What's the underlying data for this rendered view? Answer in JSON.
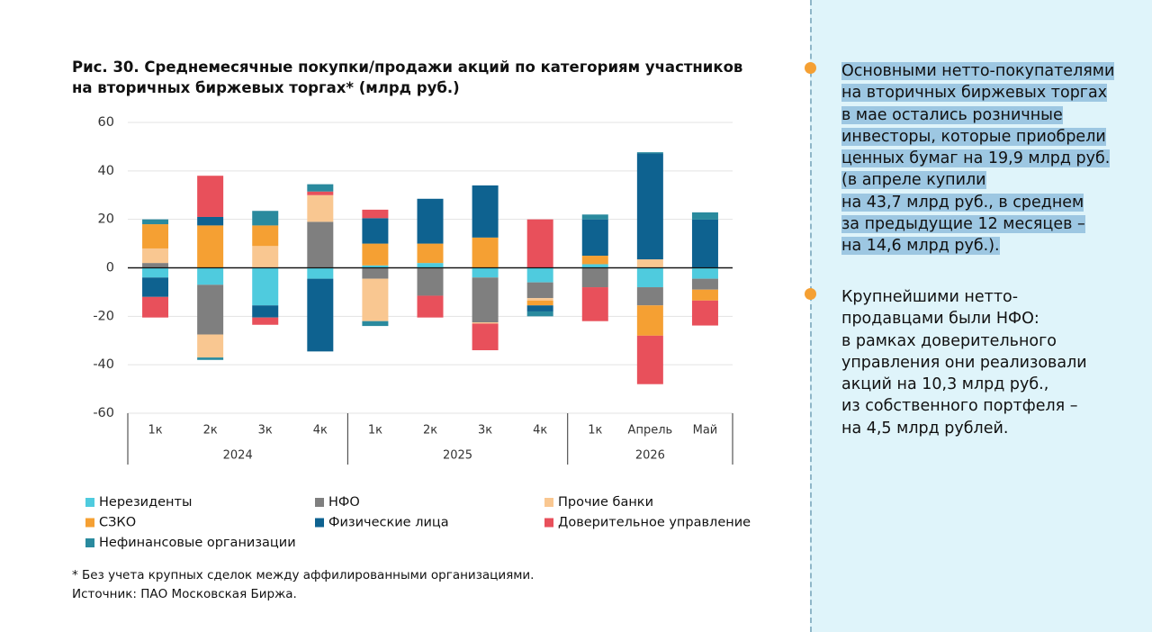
{
  "chart_data": {
    "type": "bar",
    "stacked": true,
    "title": [
      "Рис. 30. Среднемесячные покупки/продажи акций по категориям участников",
      "на вторичных биржевых торгах* (млрд руб.)"
    ],
    "categories": [
      "1к",
      "2к",
      "3к",
      "4к",
      "1к",
      "2к",
      "3к",
      "4к",
      "1к",
      "Апрель",
      "Май"
    ],
    "groups": [
      {
        "label": "2024",
        "count": 4
      },
      {
        "label": "2025",
        "count": 4
      },
      {
        "label": "2026",
        "count": 3
      }
    ],
    "series": [
      {
        "name": "Нерезиденты",
        "color": "#4fcbde",
        "values": [
          -4,
          -7,
          -15.5,
          -4.5,
          1,
          2,
          -4,
          -6,
          1.5,
          -8,
          -4.5
        ]
      },
      {
        "name": "НФО",
        "color": "#7f7f7f",
        "values": [
          2,
          -20.5,
          0,
          19,
          -4.5,
          -11.5,
          -18.5,
          -6.5,
          -8,
          -7.5,
          -4.5
        ]
      },
      {
        "name": "Прочие банки",
        "color": "#f9c791",
        "values": [
          6,
          -9.5,
          9,
          11,
          -17.5,
          0,
          -0.5,
          -1,
          0,
          3.5,
          0
        ]
      },
      {
        "name": "СЗКО",
        "color": "#f5a033",
        "values": [
          10,
          17.5,
          8.5,
          0,
          9,
          8,
          12.5,
          -2,
          3.5,
          -12.5,
          -4.5
        ]
      },
      {
        "name": "Физические лица",
        "color": "#0e6290",
        "values": [
          -8,
          3.5,
          -5,
          -30,
          10.5,
          18.5,
          21.5,
          -2.5,
          15,
          43.7,
          19.9
        ]
      },
      {
        "name": "Доверительное управление",
        "color": "#e8505b",
        "values": [
          -8.5,
          17,
          -3,
          1.5,
          3.5,
          -9,
          -11,
          20,
          -14,
          -20,
          -10.3
        ]
      },
      {
        "name": "Нефинансовые организации",
        "color": "#2a8a9e",
        "values": [
          2,
          -1,
          6,
          3,
          -2,
          0,
          0,
          -2,
          2,
          0.5,
          3
        ]
      }
    ],
    "ylim": [
      -60,
      60
    ],
    "yticks": [
      -60,
      -40,
      -20,
      0,
      20,
      40,
      60
    ],
    "grid": true,
    "footnote": "* Без учета крупных сделок между аффилированными организациями.",
    "source": "Источник: ПАО Московская Биржа."
  },
  "sidebar": {
    "paragraphs": [
      [
        "Основными нетто-покупателями",
        "на вторичных биржевых торгах",
        "в мае остались розничные",
        "инвесторы, которые приобрели",
        "ценных бумаг на 19,9 млрд руб.",
        "(в апреле купили",
        "на 43,7 млрд руб., в среднем",
        "за предыдущие 12 месяцев –",
        "на 14,6 млрд руб.)."
      ],
      [
        "Крупнейшими нетто-",
        "продавцами были НФО:",
        "в рамках доверительного",
        "управления они реализовали",
        "акций на 10,3 млрд руб.,",
        "из собственного портфеля –",
        "на 4,5 млрд рублей."
      ]
    ]
  }
}
